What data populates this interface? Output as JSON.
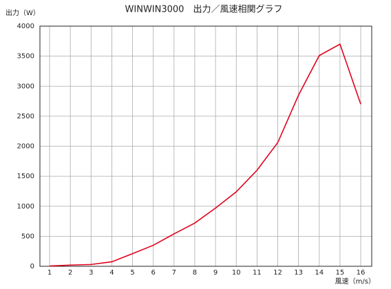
{
  "chart_data": {
    "type": "line",
    "title": "WINWIN3000　出力／風速相関グラフ",
    "y_label": "出力（W）",
    "x_label": "風速（m/s）",
    "x": [
      1,
      2,
      3,
      4,
      5,
      6,
      7,
      8,
      9,
      10,
      11,
      12,
      13,
      14,
      15,
      16
    ],
    "series": [
      {
        "name": "出力",
        "color": "#e0001b",
        "values": [
          5,
          20,
          30,
          75,
          210,
          350,
          540,
          720,
          970,
          1240,
          1600,
          2060,
          2850,
          3510,
          3700,
          2700
        ]
      }
    ],
    "xlim": [
      0.535,
      16.53
    ],
    "xticks": [
      1,
      2,
      3,
      4,
      5,
      6,
      7,
      8,
      9,
      10,
      11,
      12,
      13,
      14,
      15,
      16
    ],
    "ylim": [
      0,
      4000
    ],
    "yticks": [
      0,
      500,
      1000,
      1500,
      2000,
      2500,
      3000,
      3500,
      4000
    ],
    "grid": true
  }
}
